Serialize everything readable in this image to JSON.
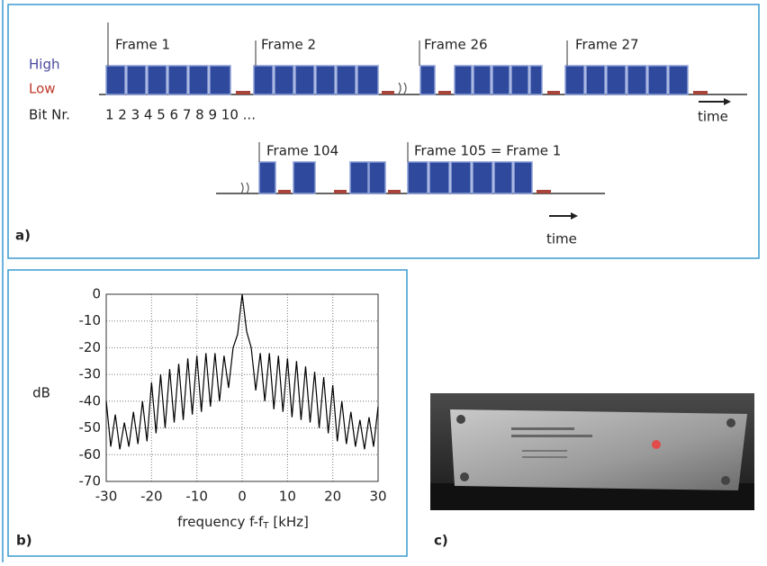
{
  "panel_a": {
    "high": "High",
    "low": "Low",
    "bit_nr": "Bit Nr.",
    "bits": "1 2 3 4 5 6 7 8 9 10 ...",
    "frames": [
      "Frame 1",
      "Frame 2",
      "Frame 26",
      "Frame 27",
      "Frame 104",
      "Frame 105 = Frame 1"
    ],
    "time": "time"
  },
  "labels": {
    "a": "a)",
    "b": "b)",
    "c": "c)"
  },
  "chart_data": {
    "type": "line",
    "ylabel": "dB",
    "xlabel": "frequency f-f",
    "xlabel_sub": "T",
    "xlabel_unit": "[kHz]",
    "x": [
      -30,
      -29,
      -28,
      -27,
      -26,
      -25,
      -24,
      -23,
      -22,
      -21,
      -20,
      -19,
      -18,
      -17,
      -16,
      -15,
      -14,
      -13,
      -12,
      -11,
      -10,
      -9,
      -8,
      -7,
      -6,
      -5,
      -4,
      -3,
      -2,
      -1,
      0,
      1,
      2,
      3,
      4,
      5,
      6,
      7,
      8,
      9,
      10,
      11,
      12,
      13,
      14,
      15,
      16,
      17,
      18,
      19,
      20,
      21,
      22,
      23,
      24,
      25,
      26,
      27,
      28,
      29,
      30
    ],
    "series": [
      {
        "color": "#000000",
        "values": [
          -40,
          -57,
          -45,
          -58,
          -48,
          -57,
          -44,
          -56,
          -40,
          -55,
          -33,
          -52,
          -30,
          -50,
          -28,
          -48,
          -26,
          -47,
          -24,
          -45,
          -23,
          -44,
          -22,
          -42,
          -22,
          -40,
          -23,
          -35,
          -20,
          -15,
          0,
          -14,
          -20,
          -36,
          -22,
          -40,
          -22,
          -43,
          -23,
          -44,
          -24,
          -46,
          -25,
          -47,
          -27,
          -48,
          -29,
          -50,
          -31,
          -52,
          -34,
          -55,
          -40,
          -56,
          -44,
          -57,
          -47,
          -58,
          -46,
          -57,
          -42
        ]
      }
    ],
    "xlim": [
      -30,
      30
    ],
    "xticks": [
      -30,
      -20,
      -10,
      0,
      10,
      20,
      30
    ],
    "ylim": [
      -70,
      0
    ],
    "yticks": [
      0,
      -10,
      -20,
      -30,
      -40,
      -50,
      -60,
      -70
    ],
    "grid": true
  }
}
